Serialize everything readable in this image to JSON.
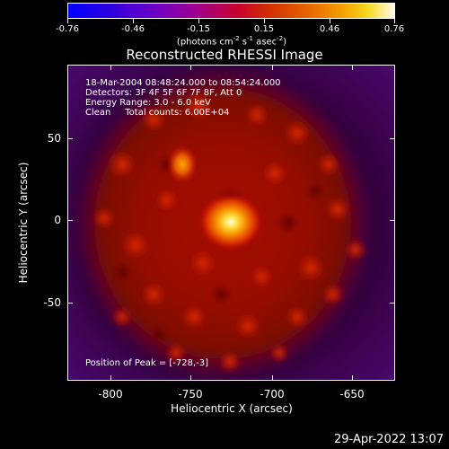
{
  "colorbar": {
    "ticks": [
      "-0.76",
      "-0.46",
      "-0.15",
      "0.15",
      "0.46",
      "0.76"
    ],
    "units_prefix": "(photons cm",
    "units_exp1": "-2",
    "units_mid": " s",
    "units_exp2": "-1",
    "units_mid2": " asec",
    "units_exp3": "-2",
    "units_suffix": ")"
  },
  "title": "Reconstructed RHESSI Image",
  "info": {
    "time_range": "18-Mar-2004 08:48:24.000 to 08:54:24.000",
    "detectors": "Detectors: 3F 4F 5F 6F 7F 8F, Att 0",
    "energy": "Energy Range: 3.0 - 6.0 keV",
    "clean_counts": "Clean     Total counts: 6.00E+04"
  },
  "peak_text": "Position of Peak = [-728,-3]",
  "axes": {
    "x_title": "Heliocentric X (arcsec)",
    "y_title": "Heliocentric Y (arcsec)",
    "x_ticks": [
      "-800",
      "-750",
      "-700",
      "-650"
    ],
    "y_ticks": [
      "50",
      "0",
      "-50"
    ]
  },
  "datestamp": "29-Apr-2022 13:07",
  "colors": {
    "background": "#000000",
    "frame": "#ffffff",
    "colormap_low": "#0000ff",
    "colormap_high": "#fffce8"
  }
}
